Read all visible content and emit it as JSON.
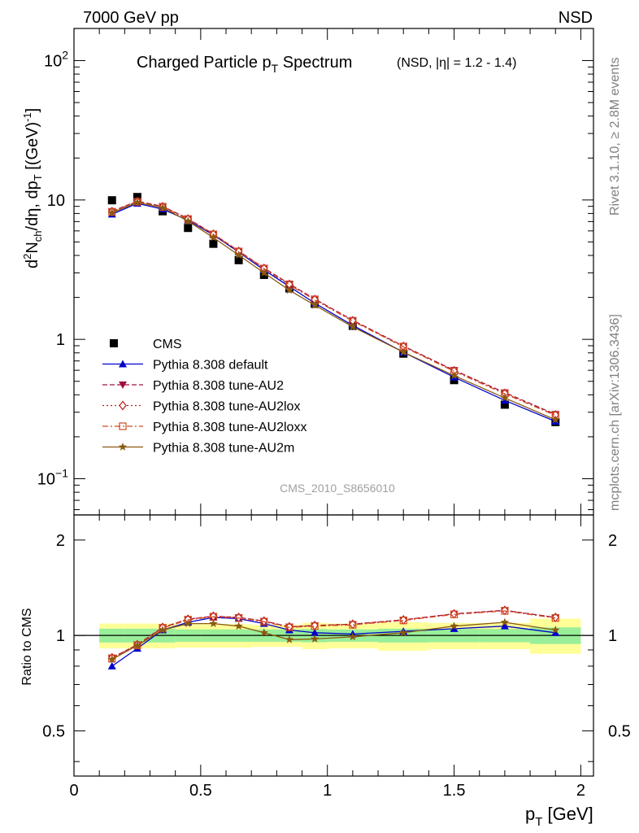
{
  "header": {
    "left": "7000 GeV pp",
    "right": "NSD"
  },
  "side_labels": {
    "rivet": "Rivet 3.1.10, ≥ 2.8M events",
    "mcplots": "mcplots.cern.ch [arXiv:1306.3436]"
  },
  "watermark": "CMS_2010_S8656010",
  "chart_data": [
    {
      "type": "line",
      "title": "Charged Particle pT Spectrum",
      "subtitle": "(NSD, |η| = 1.2 - 1.4)",
      "xlabel": "pT [GeV]",
      "ylabel": "d²Nch/dη, dpT [(GeV)⁻¹]",
      "xlim": [
        0,
        2.05
      ],
      "ylim": [
        0.055,
        170
      ],
      "yscale": "log",
      "y_ticks": [
        "10⁻¹",
        "1",
        "10",
        "10²"
      ],
      "x": [
        0.15,
        0.25,
        0.35,
        0.45,
        0.55,
        0.65,
        0.75,
        0.85,
        0.95,
        1.1,
        1.3,
        1.5,
        1.7,
        1.9
      ],
      "legend_position": "left-middle",
      "series": [
        {
          "name": "CMS",
          "style": "data",
          "color": "#000000",
          "marker": "square",
          "values": [
            9.95,
            10.5,
            8.3,
            6.3,
            4.85,
            3.7,
            2.9,
            2.32,
            1.8,
            1.25,
            0.79,
            0.51,
            0.34,
            0.255
          ]
        },
        {
          "name": "Pythia 8.308 default",
          "color": "#0000cc",
          "dash": "",
          "marker": "triangle-up",
          "values": [
            7.9,
            9.45,
            8.6,
            7.15,
            5.62,
            4.22,
            3.15,
            2.39,
            1.82,
            1.26,
            0.81,
            0.535,
            0.365,
            0.258
          ]
        },
        {
          "name": "Pythia 8.308 tune-AU2",
          "color": "#a01040",
          "dash": "6,3",
          "marker": "triangle-down",
          "values": [
            8.3,
            9.8,
            9.0,
            7.35,
            5.7,
            4.3,
            3.25,
            2.5,
            1.95,
            1.37,
            0.895,
            0.6,
            0.415,
            0.29
          ]
        },
        {
          "name": "Pythia 8.308 tune-AU2lox",
          "color": "#c02020",
          "dash": "2,3",
          "marker": "diamond-open",
          "values": [
            8.25,
            9.75,
            8.95,
            7.3,
            5.68,
            4.28,
            3.23,
            2.48,
            1.93,
            1.36,
            0.89,
            0.595,
            0.41,
            0.287
          ]
        },
        {
          "name": "Pythia 8.308 tune-AU2loxx",
          "color": "#d04a20",
          "dash": "7,3,2,3",
          "marker": "square-open",
          "values": [
            8.2,
            9.7,
            8.9,
            7.28,
            5.66,
            4.26,
            3.21,
            2.46,
            1.92,
            1.35,
            0.885,
            0.59,
            0.407,
            0.285
          ]
        },
        {
          "name": "Pythia 8.308 tune-AU2m",
          "color": "#8a5a10",
          "dash": "",
          "marker": "star",
          "values": [
            8.1,
            9.6,
            8.8,
            7.05,
            5.38,
            4.02,
            3.0,
            2.25,
            1.76,
            1.23,
            0.81,
            0.55,
            0.38,
            0.265
          ]
        }
      ]
    },
    {
      "type": "line",
      "xlabel": "pT [GeV]",
      "ylabel": "Ratio to CMS",
      "xlim": [
        0,
        2.05
      ],
      "ylim": [
        0.36,
        2.4
      ],
      "yscale": "log",
      "y_ticks": [
        "0.5",
        "1",
        "2"
      ],
      "x_ticks": [
        "0",
        "0.5",
        "1",
        "1.5",
        "2"
      ],
      "x": [
        0.15,
        0.25,
        0.35,
        0.45,
        0.55,
        0.65,
        0.75,
        0.85,
        0.95,
        1.1,
        1.3,
        1.5,
        1.7,
        1.9
      ],
      "bands": {
        "bin_edges": [
          0.1,
          0.2,
          0.3,
          0.4,
          0.5,
          0.6,
          0.7,
          0.8,
          0.9,
          1.0,
          1.2,
          1.4,
          1.6,
          1.8,
          2.0
        ],
        "yellow_lo": [
          0.91,
          0.91,
          0.91,
          0.915,
          0.915,
          0.915,
          0.92,
          0.92,
          0.905,
          0.91,
          0.895,
          0.905,
          0.905,
          0.875
        ],
        "yellow_hi": [
          1.09,
          1.09,
          1.09,
          1.085,
          1.085,
          1.085,
          1.08,
          1.08,
          1.095,
          1.09,
          1.1,
          1.095,
          1.095,
          1.13
        ],
        "green_lo": [
          0.95,
          0.95,
          0.95,
          0.955,
          0.955,
          0.955,
          0.955,
          0.955,
          0.952,
          0.955,
          0.95,
          0.952,
          0.952,
          0.94
        ],
        "green_hi": [
          1.05,
          1.05,
          1.05,
          1.045,
          1.045,
          1.045,
          1.045,
          1.045,
          1.048,
          1.045,
          1.05,
          1.048,
          1.048,
          1.06
        ]
      },
      "series": [
        {
          "name": "Pythia 8.308 default",
          "values": [
            0.8,
            0.91,
            1.04,
            1.1,
            1.14,
            1.13,
            1.09,
            1.04,
            1.02,
            1.01,
            1.03,
            1.05,
            1.07,
            1.02
          ]
        },
        {
          "name": "Pythia 8.308 tune-AU2",
          "values": [
            0.85,
            0.935,
            1.06,
            1.125,
            1.15,
            1.14,
            1.11,
            1.065,
            1.075,
            1.085,
            1.12,
            1.17,
            1.2,
            1.14
          ]
        },
        {
          "name": "Pythia 8.308 tune-AU2lox",
          "values": [
            0.85,
            0.935,
            1.06,
            1.125,
            1.15,
            1.14,
            1.11,
            1.065,
            1.075,
            1.085,
            1.12,
            1.17,
            1.2,
            1.14
          ]
        },
        {
          "name": "Pythia 8.308 tune-AU2loxx",
          "values": [
            0.845,
            0.93,
            1.055,
            1.12,
            1.145,
            1.135,
            1.105,
            1.06,
            1.07,
            1.08,
            1.115,
            1.165,
            1.195,
            1.135
          ]
        },
        {
          "name": "Pythia 8.308 tune-AU2m",
          "values": [
            0.84,
            0.93,
            1.04,
            1.09,
            1.09,
            1.07,
            1.02,
            0.97,
            0.975,
            0.99,
            1.02,
            1.07,
            1.1,
            1.04
          ]
        }
      ]
    }
  ]
}
